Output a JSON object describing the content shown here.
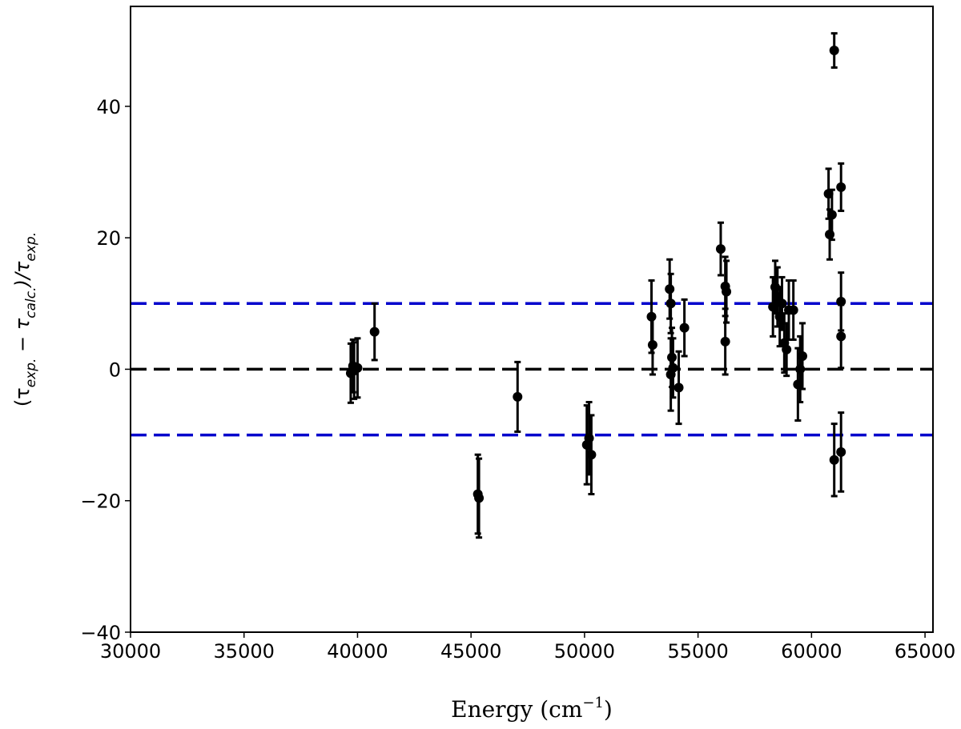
{
  "chart_data": {
    "type": "errorbar",
    "x_label_parts": [
      "Energy (cm",
      "−1",
      ")"
    ],
    "y_label_parts": [
      "(τ",
      "exp.",
      " − τ",
      "calc.",
      ")/τ",
      "exp."
    ],
    "x": [
      39700,
      39800,
      39850,
      40000,
      40750,
      45300,
      45350,
      47050,
      50100,
      50200,
      50300,
      52950,
      53000,
      53750,
      53800,
      53800,
      53850,
      53900,
      54150,
      54400,
      56000,
      56200,
      56250,
      56200,
      58300,
      58400,
      58500,
      58600,
      58700,
      58800,
      58900,
      59000,
      59200,
      59400,
      59500,
      59600,
      60750,
      60800,
      60900,
      61000,
      61000,
      61300,
      61300,
      61300,
      61300
    ],
    "values": [
      -0.6,
      0.5,
      -0.2,
      0.2,
      5.7,
      -19,
      -19.6,
      -4.2,
      -11.5,
      -10.5,
      -13,
      8,
      3.7,
      12.2,
      10,
      -0.8,
      1.8,
      0.2,
      -2.8,
      6.3,
      18.3,
      12.6,
      11.8,
      4.2,
      9.5,
      12.5,
      11,
      8,
      10,
      4,
      3,
      9,
      9,
      -2.3,
      0,
      2,
      26.7,
      20.5,
      23.5,
      48.5,
      -13.8,
      27.7,
      10.3,
      5,
      -12.6
    ],
    "errors": [
      4.5,
      4,
      4.3,
      4.5,
      4.3,
      6,
      6,
      5.3,
      6,
      5.5,
      6,
      5.5,
      4.5,
      4.5,
      4.5,
      5.5,
      4.5,
      4.5,
      5.5,
      4.3,
      4,
      4.5,
      4.7,
      5,
      4.5,
      4,
      4.5,
      4.5,
      4,
      4.5,
      4,
      4.5,
      4.5,
      5.5,
      5,
      5,
      3.8,
      3.8,
      3.8,
      2.6,
      5.5,
      3.6,
      4.4,
      4.8,
      6
    ],
    "color": "#000000",
    "hlines": [
      {
        "value": 10,
        "color": "#0000cc"
      },
      {
        "value": 0,
        "color": "#000000"
      },
      {
        "value": -10,
        "color": "#0000cc"
      }
    ],
    "xlim": [
      30000,
      65350
    ],
    "ylim": [
      -40,
      55.2
    ],
    "xticks": [
      30000,
      35000,
      40000,
      45000,
      50000,
      55000,
      60000,
      65000
    ],
    "yticks": [
      {
        "value": -40,
        "label": "−40"
      },
      {
        "value": -20,
        "label": "−20"
      },
      0,
      20,
      40
    ]
  }
}
